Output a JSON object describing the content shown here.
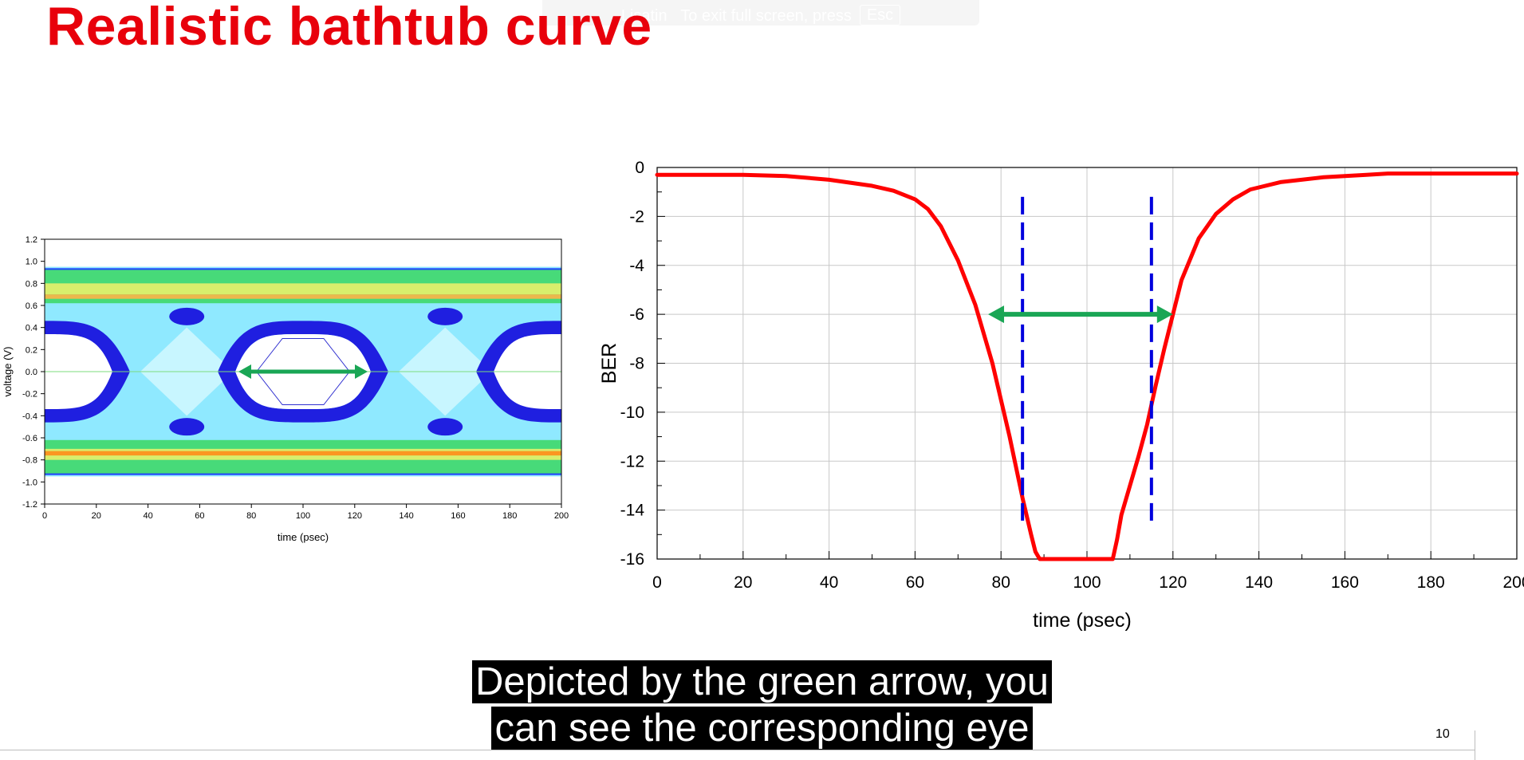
{
  "fullscreen_banner": {
    "prefix": "Lisatin",
    "message": "To exit full screen, press",
    "key": "Esc"
  },
  "slide": {
    "title": "Realistic bathtub curve",
    "page_number": "10"
  },
  "subtitle": {
    "line1": "Depicted by the green arrow, you",
    "line2": "can see the corresponding eye"
  },
  "colors": {
    "title": "#e8000b",
    "curve": "#ff0000",
    "arrow": "#1aa655",
    "dashed": "#0000dd",
    "eye_inner": "#1f1fe0",
    "eye_cyan": "#8fe9ff"
  },
  "chart_data": [
    {
      "type": "eye-diagram",
      "xlabel": "time (psec)",
      "ylabel": "voltage (V)",
      "xlim": [
        0,
        200
      ],
      "ylim": [
        -1.2,
        1.2
      ],
      "x_ticks": [
        0,
        20,
        40,
        60,
        80,
        100,
        120,
        140,
        160,
        180,
        200
      ],
      "y_ticks": [
        1.2,
        1.0,
        0.8,
        0.6,
        0.4,
        0.2,
        0.0,
        -0.2,
        -0.4,
        -0.6,
        -0.8,
        -1.0,
        -1.2
      ],
      "eye_opening_arrow": [
        75,
        125
      ],
      "mask_hexagon": [
        [
          82,
          0
        ],
        [
          92,
          0.3
        ],
        [
          108,
          0.3
        ],
        [
          118,
          0
        ],
        [
          108,
          -0.3
        ],
        [
          92,
          -0.3
        ]
      ]
    },
    {
      "type": "line",
      "title": "",
      "xlabel": "time (psec)",
      "ylabel": "BER",
      "xlim": [
        0,
        200
      ],
      "ylim": [
        -16,
        0
      ],
      "x_ticks": [
        0,
        20,
        40,
        60,
        80,
        100,
        120,
        140,
        160,
        180,
        200
      ],
      "y_ticks": [
        0,
        -2,
        -4,
        -6,
        -8,
        -10,
        -12,
        -14,
        -16
      ],
      "grid": true,
      "series": [
        {
          "x": [
            0,
            20,
            30,
            40,
            50,
            55,
            60,
            63,
            66,
            70,
            74,
            78,
            82,
            85,
            87,
            88,
            89,
            100,
            106,
            107,
            108,
            110,
            112,
            114,
            116,
            118,
            120,
            122,
            126,
            130,
            134,
            138,
            145,
            155,
            165,
            170,
            180,
            200
          ],
          "y": [
            -0.3,
            -0.3,
            -0.35,
            -0.5,
            -0.75,
            -0.95,
            -1.3,
            -1.7,
            -2.4,
            -3.8,
            -5.6,
            -8.0,
            -11.0,
            -13.5,
            -15.0,
            -15.7,
            -16.0,
            -16.0,
            -16.0,
            -15.2,
            -14.2,
            -13.0,
            -11.8,
            -10.5,
            -8.9,
            -7.4,
            -6.0,
            -4.6,
            -2.9,
            -1.9,
            -1.3,
            -0.9,
            -0.6,
            -0.4,
            -0.3,
            -0.25,
            -0.25,
            -0.25
          ]
        }
      ],
      "dashed_markers_x": [
        85,
        115
      ],
      "dashed_markers_y_range": [
        -1.2,
        -14.6
      ],
      "arrow": {
        "x": [
          77,
          120
        ],
        "y": -6
      }
    }
  ]
}
